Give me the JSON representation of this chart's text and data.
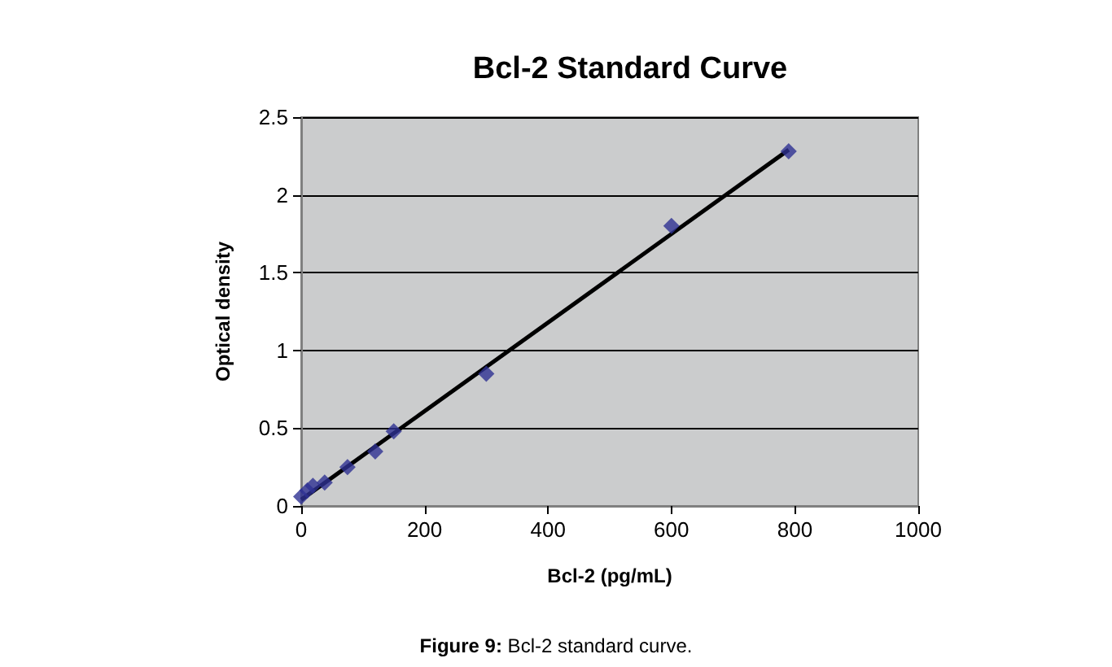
{
  "chart_data": {
    "type": "scatter",
    "title": "Bcl-2 Standard Curve",
    "xlabel": "Bcl-2 (pg/mL)",
    "ylabel": "Optical density",
    "annotations": [
      "Figure 9: Bcl-2 standard curve."
    ],
    "series": [
      {
        "color": "#2e3192",
        "marker": "diamond",
        "x": [
          0,
          10,
          19,
          38,
          75,
          120,
          150,
          300,
          600,
          790
        ],
        "values": [
          0.06,
          0.1,
          0.13,
          0.15,
          0.25,
          0.35,
          0.48,
          0.85,
          1.8,
          2.28
        ]
      },
      {
        "type": "line",
        "color": "#000000",
        "marker": "none",
        "x": [
          0,
          790
        ],
        "values": [
          0.04,
          2.29
        ]
      }
    ],
    "xlim": [
      0,
      1000
    ],
    "xticks": [
      0,
      200,
      400,
      600,
      800,
      1000
    ],
    "ylim": [
      0,
      2.5
    ],
    "yticks": [
      0,
      0.5,
      1,
      1.5,
      2,
      2.5
    ],
    "grid": "y"
  }
}
